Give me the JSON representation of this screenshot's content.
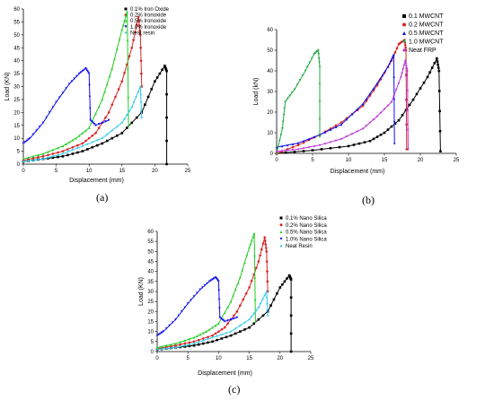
{
  "panels": [
    {
      "label": "(a)"
    },
    {
      "label": "(b)"
    },
    {
      "label": "(c)"
    }
  ],
  "chart_data": [
    {
      "type": "line",
      "title": "",
      "xlabel": "Displacement (mm)",
      "ylabel": "Load (KN)",
      "xlim": [
        0,
        25
      ],
      "ylim": [
        0,
        60
      ],
      "xticks": [
        0,
        5,
        10,
        15,
        20,
        25
      ],
      "yticks": [
        0,
        5,
        10,
        15,
        20,
        25,
        30,
        35,
        40,
        45,
        50,
        55,
        60
      ],
      "grid": false,
      "legend_position": "top-right",
      "series": [
        {
          "name": "0.1% Iron Oxide",
          "color": "#000000",
          "marker": "square",
          "points": [
            [
              0,
              1
            ],
            [
              3,
              2
            ],
            [
              6,
              3
            ],
            [
              9,
              5
            ],
            [
              12,
              8
            ],
            [
              15,
              12
            ],
            [
              18,
              20
            ],
            [
              20,
              32
            ],
            [
              21.5,
              38
            ],
            [
              21.8,
              36
            ],
            [
              21.8,
              0
            ]
          ]
        },
        {
          "name": "0.2% Ironoxide",
          "color": "#d62728",
          "marker": "circle",
          "points": [
            [
              0,
              1.5
            ],
            [
              3,
              3
            ],
            [
              6,
              5
            ],
            [
              9,
              8
            ],
            [
              11,
              12
            ],
            [
              13,
              20
            ],
            [
              15,
              32
            ],
            [
              16.5,
              45
            ],
            [
              17.5,
              57
            ],
            [
              17.8,
              50
            ],
            [
              18,
              30
            ]
          ]
        },
        {
          "name": "0.5% Ironoxide",
          "color": "#22cc22",
          "marker": "triangle-up",
          "points": [
            [
              0,
              2
            ],
            [
              3,
              4
            ],
            [
              6,
              7
            ],
            [
              8,
              10
            ],
            [
              10,
              14
            ],
            [
              12,
              25
            ],
            [
              13.5,
              37
            ],
            [
              15,
              52
            ],
            [
              15.8,
              59
            ],
            [
              16,
              15
            ]
          ]
        },
        {
          "name": "1.0% Ironoxide",
          "color": "#1010ee",
          "marker": "triangle-down",
          "points": [
            [
              0,
              8
            ],
            [
              1,
              10
            ],
            [
              3,
              16
            ],
            [
              5,
              24
            ],
            [
              7,
              31
            ],
            [
              8.5,
              35
            ],
            [
              9.5,
              37
            ],
            [
              10,
              35
            ],
            [
              10.2,
              17
            ],
            [
              11,
              15
            ],
            [
              13,
              17
            ]
          ]
        },
        {
          "name": "Neat resin",
          "color": "#33ccee",
          "marker": "diamond",
          "points": [
            [
              0,
              1
            ],
            [
              3,
              2
            ],
            [
              6,
              4
            ],
            [
              9,
              7
            ],
            [
              12,
              10
            ],
            [
              15,
              16
            ],
            [
              16.5,
              22
            ],
            [
              17.8,
              30
            ],
            [
              18,
              18
            ]
          ]
        }
      ]
    },
    {
      "type": "line",
      "title": "",
      "xlabel": "Displacement (mm)",
      "ylabel": "Load (kN)",
      "xlim": [
        0,
        25
      ],
      "ylim": [
        0,
        60
      ],
      "xticks": [
        0,
        5,
        10,
        15,
        20,
        25
      ],
      "yticks": [
        0,
        10,
        20,
        30,
        40,
        50,
        60
      ],
      "grid": false,
      "legend_position": "top-right",
      "series": [
        {
          "name": "0.1 MWCNT",
          "color": "#000000",
          "marker": "square",
          "points": [
            [
              0,
              0
            ],
            [
              5,
              1.5
            ],
            [
              10,
              3.5
            ],
            [
              13,
              6
            ],
            [
              15,
              10
            ],
            [
              17,
              16
            ],
            [
              19,
              26
            ],
            [
              21,
              37
            ],
            [
              22.3,
              46
            ],
            [
              22.6,
              40
            ],
            [
              22.8,
              1
            ]
          ]
        },
        {
          "name": "0.2 MWCNT",
          "color": "#d62728",
          "marker": "circle",
          "points": [
            [
              0,
              0
            ],
            [
              3,
              4
            ],
            [
              6,
              9
            ],
            [
              9,
              15
            ],
            [
              12,
              23
            ],
            [
              14,
              33
            ],
            [
              16,
              45
            ],
            [
              17,
              53
            ],
            [
              17.8,
              55
            ],
            [
              18,
              50
            ],
            [
              18.1,
              2
            ]
          ]
        },
        {
          "name": "0.5 MWCNT",
          "color": "#1010ee",
          "marker": "triangle-up",
          "points": [
            [
              0,
              3
            ],
            [
              3,
              5
            ],
            [
              6,
              9
            ],
            [
              9,
              14
            ],
            [
              12,
              24
            ],
            [
              14,
              34
            ],
            [
              15.5,
              42
            ],
            [
              16.3,
              48
            ],
            [
              16.4,
              5
            ]
          ]
        },
        {
          "name": "1.0 MWCNT",
          "color": "#22aa44",
          "marker": "triangle-down",
          "points": [
            [
              0,
              0
            ],
            [
              0.8,
              12
            ],
            [
              1.2,
              25
            ],
            [
              2.5,
              31
            ],
            [
              4,
              40
            ],
            [
              5.2,
              48
            ],
            [
              5.8,
              50
            ],
            [
              6,
              42
            ],
            [
              6,
              8
            ]
          ]
        },
        {
          "name": "Neat FRP",
          "color": "#bb33dd",
          "marker": "diamond",
          "points": [
            [
              0,
              1
            ],
            [
              3,
              2
            ],
            [
              6,
              4
            ],
            [
              9,
              7
            ],
            [
              12,
              12
            ],
            [
              14,
              18
            ],
            [
              16,
              25
            ],
            [
              17.3,
              37
            ],
            [
              17.9,
              45
            ],
            [
              18.2,
              40
            ],
            [
              18.3,
              2
            ]
          ]
        }
      ]
    },
    {
      "type": "line",
      "title": "",
      "xlabel": "Displacement (mm)",
      "ylabel": "Load (KN)",
      "xlim": [
        0,
        25
      ],
      "ylim": [
        0,
        60
      ],
      "xticks": [
        0,
        5,
        10,
        15,
        20,
        25
      ],
      "yticks": [
        0,
        5,
        10,
        15,
        20,
        25,
        30,
        35,
        40,
        45,
        50,
        55,
        60
      ],
      "grid": false,
      "legend_position": "top-right",
      "series": [
        {
          "name": "0.1% Nano Silica",
          "color": "#000000",
          "marker": "square",
          "points": [
            [
              0,
              1
            ],
            [
              3,
              2
            ],
            [
              6,
              3
            ],
            [
              9,
              5
            ],
            [
              12,
              8
            ],
            [
              15,
              12
            ],
            [
              18,
              20
            ],
            [
              20,
              32
            ],
            [
              21.5,
              38
            ],
            [
              21.8,
              36
            ],
            [
              21.8,
              0
            ]
          ]
        },
        {
          "name": "0.2% Nano Silica",
          "color": "#d62728",
          "marker": "circle",
          "points": [
            [
              0,
              1.5
            ],
            [
              3,
              3
            ],
            [
              6,
              5
            ],
            [
              9,
              8
            ],
            [
              11,
              12
            ],
            [
              13,
              20
            ],
            [
              15,
              32
            ],
            [
              16.5,
              45
            ],
            [
              17.5,
              57
            ],
            [
              17.8,
              50
            ],
            [
              18,
              30
            ]
          ]
        },
        {
          "name": "0.5% Nano Silica",
          "color": "#22cc22",
          "marker": "triangle-up",
          "points": [
            [
              0,
              2
            ],
            [
              3,
              4
            ],
            [
              6,
              7
            ],
            [
              8,
              10
            ],
            [
              10,
              14
            ],
            [
              12,
              25
            ],
            [
              13.5,
              37
            ],
            [
              15,
              52
            ],
            [
              15.8,
              59
            ],
            [
              16,
              15
            ]
          ]
        },
        {
          "name": "1.0% Nano Silica",
          "color": "#1010ee",
          "marker": "triangle-down",
          "points": [
            [
              0,
              8
            ],
            [
              1,
              10
            ],
            [
              3,
              16
            ],
            [
              5,
              24
            ],
            [
              7,
              31
            ],
            [
              8.5,
              35
            ],
            [
              9.5,
              37
            ],
            [
              10,
              35
            ],
            [
              10.2,
              17
            ],
            [
              11,
              15
            ],
            [
              13,
              17
            ]
          ]
        },
        {
          "name": "Neat Resin",
          "color": "#33ccee",
          "marker": "diamond",
          "points": [
            [
              0,
              1
            ],
            [
              3,
              2
            ],
            [
              6,
              4
            ],
            [
              9,
              7
            ],
            [
              12,
              10
            ],
            [
              15,
              16
            ],
            [
              16.5,
              22
            ],
            [
              17.8,
              30
            ],
            [
              18,
              18
            ]
          ]
        }
      ]
    }
  ]
}
